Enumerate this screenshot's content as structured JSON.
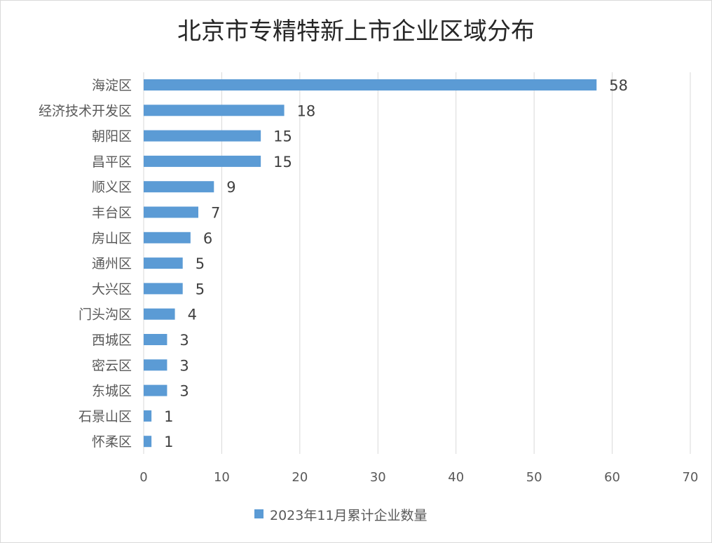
{
  "chart_data": {
    "type": "bar",
    "orientation": "horizontal",
    "title": "北京市专精特新上市企业区域分布",
    "categories": [
      "海淀区",
      "经济技术开发区",
      "朝阳区",
      "昌平区",
      "顺义区",
      "丰台区",
      "房山区",
      "通州区",
      "大兴区",
      "门头沟区",
      "西城区",
      "密云区",
      "东城区",
      "石景山区",
      "怀柔区"
    ],
    "series": [
      {
        "name": "2023年11月累计企业数量",
        "values": [
          58,
          18,
          15,
          15,
          9,
          7,
          6,
          5,
          5,
          4,
          3,
          3,
          3,
          1,
          1
        ],
        "color": "#5b9bd5"
      }
    ],
    "xlim": [
      0,
      70
    ],
    "xticks": [
      "0",
      "10",
      "20",
      "30",
      "40",
      "50",
      "60",
      "70"
    ],
    "grid": "vertical",
    "data_labels": true,
    "legend": "bottom"
  }
}
